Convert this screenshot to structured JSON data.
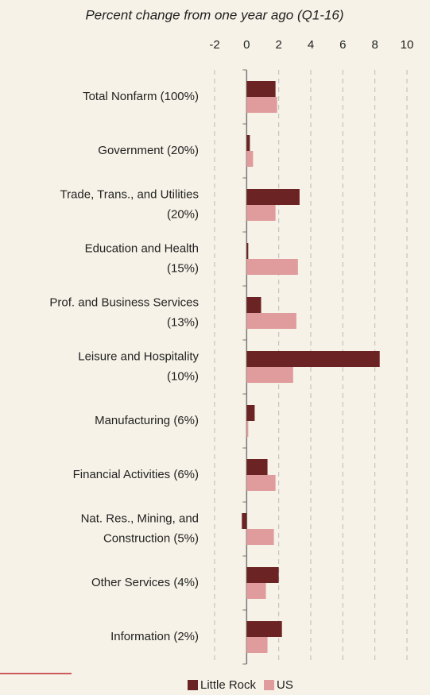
{
  "chart_data": {
    "type": "bar",
    "orientation": "horizontal",
    "title": "Percent change from one year ago (Q1-16)",
    "categories": [
      [
        "Total Nonfarm (100%)"
      ],
      [
        "Government (20%)"
      ],
      [
        "Trade, Trans., and Utilities",
        "(20%)"
      ],
      [
        "Education and Health",
        "(15%)"
      ],
      [
        "Prof. and Business Services",
        "(13%)"
      ],
      [
        "Leisure and Hospitality",
        "(10%)"
      ],
      [
        "Manufacturing (6%)"
      ],
      [
        "Financial Activities (6%)"
      ],
      [
        "Nat. Res., Mining, and",
        "Construction (5%)"
      ],
      [
        "Other Services (4%)"
      ],
      [
        "Information (2%)"
      ]
    ],
    "series": [
      {
        "name": "Little Rock",
        "color": "#6b2323",
        "values": [
          1.8,
          0.2,
          3.3,
          0.1,
          0.9,
          8.3,
          0.5,
          1.3,
          -0.3,
          2.0,
          2.2
        ]
      },
      {
        "name": "US",
        "color": "#e09c9c",
        "values": [
          1.9,
          0.4,
          1.8,
          3.2,
          3.1,
          2.9,
          0.1,
          1.8,
          1.7,
          1.2,
          1.3
        ]
      }
    ],
    "xlim": [
      -2,
      10
    ],
    "xticks": [
      -2,
      0,
      2,
      4,
      6,
      8,
      10
    ],
    "grid": true,
    "legend": "bottom"
  }
}
